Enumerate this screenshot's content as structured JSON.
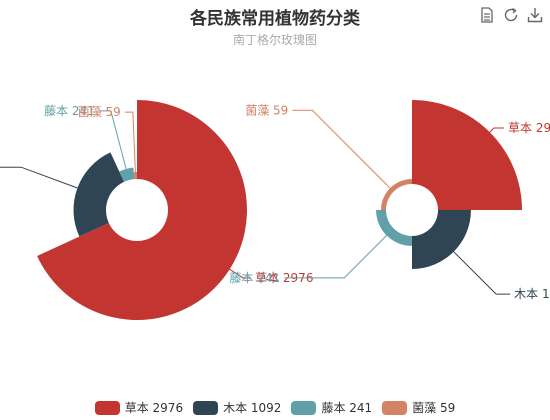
{
  "title": "各民族常用植物药分类",
  "subtitle": "南丁格尔玫瑰图",
  "toolbox": [
    "data-view-icon",
    "refresh-icon",
    "download-icon"
  ],
  "chart_data": [
    {
      "type": "pie",
      "rose_type": "radius",
      "series": [
        {
          "name": "草本",
          "value": 2976,
          "color": "#c23531"
        },
        {
          "name": "木本",
          "value": 1092,
          "color": "#2f4554"
        },
        {
          "name": "藤本",
          "value": 241,
          "color": "#61a0a8"
        },
        {
          "name": "菌藻",
          "value": 59,
          "color": "#d48265"
        }
      ]
    },
    {
      "type": "pie",
      "rose_type": "area",
      "series": [
        {
          "name": "草本",
          "value": 2976,
          "color": "#c23531"
        },
        {
          "name": "木本",
          "value": 1092,
          "color": "#2f4554"
        },
        {
          "name": "藤本",
          "value": 241,
          "color": "#61a0a8"
        },
        {
          "name": "菌藻",
          "value": 59,
          "color": "#d48265"
        }
      ]
    }
  ],
  "legend": [
    {
      "label": "草本 2976",
      "color": "#c23531"
    },
    {
      "label": "木本 1092",
      "color": "#2f4554"
    },
    {
      "label": "藤本 241",
      "color": "#61a0a8"
    },
    {
      "label": "菌藻 59",
      "color": "#d48265"
    }
  ]
}
